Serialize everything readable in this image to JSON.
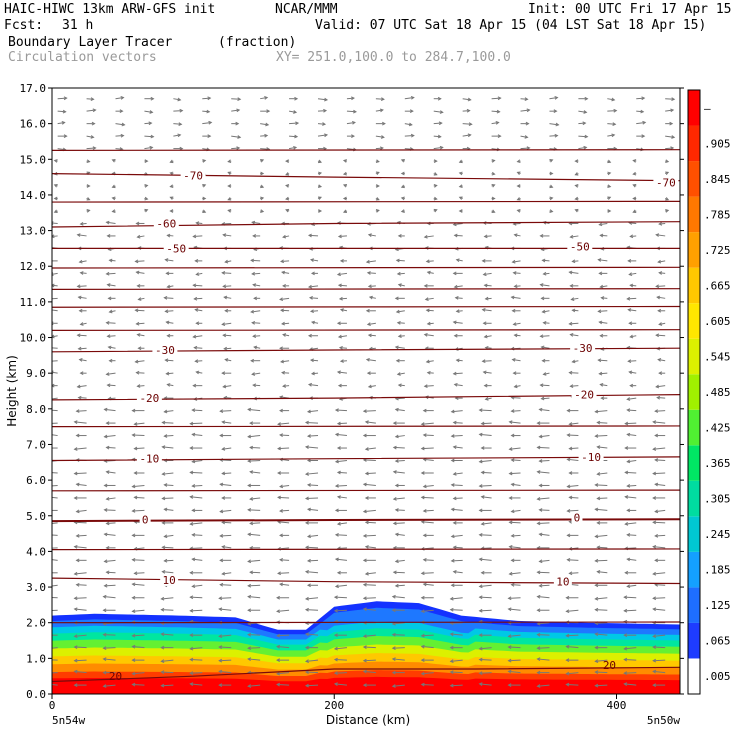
{
  "header": {
    "model": "HAIC-HIWC 13km ARW-GFS init",
    "org": "NCAR/MMM",
    "init": "Init: 00 UTC Fri 17 Apr 15",
    "fcst_label": "Fcst:",
    "fcst_value": "31 h",
    "valid": "Valid: 07 UTC Sat 18 Apr 15 (04 LST Sat 18 Apr 15)",
    "field_name": "Boundary Layer Tracer",
    "field_units": "(fraction)",
    "vector_name": "Circulation vectors",
    "xy": "XY= 251.0,100.0 to 284.7,100.0"
  },
  "chart_data": {
    "type": "heatmap",
    "xlabel": "Distance (km)",
    "ylabel": "Height (km)",
    "xlim": [
      0,
      445
    ],
    "ylim": [
      0,
      17
    ],
    "x_ticks": [
      "0",
      "200",
      "400"
    ],
    "x_tick_values": [
      0,
      200,
      400
    ],
    "y_ticks": [
      "0.0",
      "1.0",
      "2.0",
      "3.0",
      "4.0",
      "5.0",
      "6.0",
      "7.0",
      "8.0",
      "9.0",
      "10.0",
      "11.0",
      "12.0",
      "13.0",
      "14.0",
      "15.0",
      "16.0",
      "17.0"
    ],
    "endpoint_left": "5n54w",
    "endpoint_right": "5n50w",
    "colorbar_labels": [
      ".005",
      ".065",
      ".125",
      ".185",
      ".245",
      ".305",
      ".365",
      ".425",
      ".485",
      ".545",
      ".605",
      ".665",
      ".725",
      ".785",
      ".845",
      ".905",
      "–"
    ],
    "colorbar_colors": [
      "#ffffff",
      "#1e3cff",
      "#1e6eff",
      "#14a0ff",
      "#00c8d2",
      "#00dca0",
      "#00e664",
      "#50f032",
      "#a0f000",
      "#dcf000",
      "#ffe600",
      "#ffc800",
      "#ffa000",
      "#ff7800",
      "#ff5000",
      "#ff2800",
      "#ff0000"
    ],
    "tracer_top_km": [
      [
        0,
        2.2
      ],
      [
        30,
        2.25
      ],
      [
        90,
        2.2
      ],
      [
        130,
        2.15
      ],
      [
        160,
        1.8
      ],
      [
        180,
        1.8
      ],
      [
        200,
        2.45
      ],
      [
        230,
        2.6
      ],
      [
        260,
        2.55
      ],
      [
        290,
        2.2
      ],
      [
        330,
        2.05
      ],
      [
        380,
        2.0
      ],
      [
        445,
        1.95
      ]
    ],
    "temperature_contours": [
      {
        "label": "20",
        "heights": [
          [
            0,
            0.35
          ],
          [
            100,
            0.5
          ],
          [
            200,
            0.7
          ],
          [
            300,
            0.7
          ],
          [
            445,
            0.75
          ]
        ],
        "label_at": [
          [
            45,
            0.5
          ],
          [
            395,
            0.82
          ]
        ]
      },
      {
        "label": "10",
        "heights": [
          [
            0,
            3.25
          ],
          [
            200,
            3.15
          ],
          [
            445,
            3.1
          ]
        ],
        "label_at": [
          [
            83,
            3.2
          ],
          [
            362,
            3.15
          ]
        ]
      },
      {
        "label": "0",
        "heights": [
          [
            0,
            4.85
          ],
          [
            200,
            4.88
          ],
          [
            445,
            4.9
          ]
        ],
        "label_at": [
          [
            66,
            4.9
          ],
          [
            372,
            4.95
          ]
        ]
      },
      {
        "label": "-10",
        "heights": [
          [
            0,
            6.55
          ],
          [
            200,
            6.6
          ],
          [
            445,
            6.65
          ]
        ],
        "label_at": [
          [
            69,
            6.6
          ],
          [
            382,
            6.65
          ]
        ]
      },
      {
        "label": "-20",
        "heights": [
          [
            0,
            8.25
          ],
          [
            200,
            8.3
          ],
          [
            445,
            8.4
          ]
        ],
        "label_at": [
          [
            69,
            8.3
          ],
          [
            377,
            8.4
          ]
        ]
      },
      {
        "label": "-30",
        "heights": [
          [
            0,
            9.6
          ],
          [
            200,
            9.65
          ],
          [
            445,
            9.7
          ]
        ],
        "label_at": [
          [
            80,
            9.65
          ],
          [
            376,
            9.7
          ]
        ]
      },
      {
        "label": "-50",
        "heights": [
          [
            0,
            12.5
          ],
          [
            200,
            12.5
          ],
          [
            445,
            12.5
          ]
        ],
        "label_at": [
          [
            88,
            12.5
          ],
          [
            374,
            12.55
          ]
        ]
      },
      {
        "label": "-60",
        "heights": [
          [
            0,
            13.1
          ],
          [
            200,
            13.2
          ],
          [
            445,
            13.25
          ]
        ],
        "label_at": [
          [
            81,
            13.2
          ],
          [
            0,
            0
          ]
        ]
      },
      {
        "label": "-70",
        "heights": [
          [
            0,
            14.6
          ],
          [
            200,
            14.5
          ],
          [
            445,
            14.4
          ]
        ],
        "label_at": [
          [
            100,
            14.55
          ],
          [
            435,
            14.35
          ]
        ]
      }
    ],
    "other_contours_km": [
      2.0,
      4.05,
      5.7,
      7.5,
      10.2,
      10.85,
      11.35,
      11.95,
      13.8,
      15.25
    ],
    "grid": false,
    "legend": "colorbar-right"
  }
}
